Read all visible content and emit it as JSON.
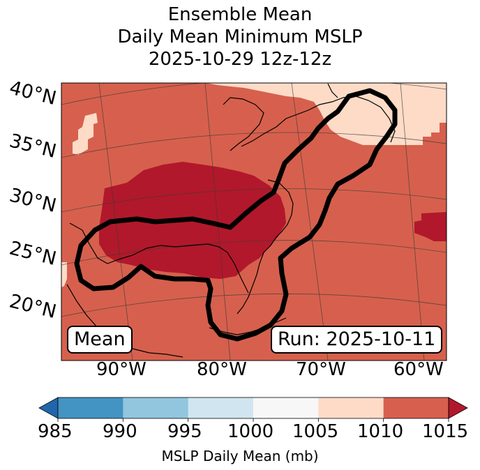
{
  "title": {
    "line1": "Ensemble Mean",
    "line2": "Daily Mean Minimum MSLP",
    "line3": "2025-10-29 12z-12z"
  },
  "badges": {
    "mean": "Mean",
    "run": "Run: 2025-10-11"
  },
  "lat_labels": [
    "40°N",
    "35°N",
    "30°N",
    "25°N",
    "20°N"
  ],
  "lon_labels": [
    "90°W",
    "80°W",
    "70°W",
    "60°W"
  ],
  "colorbar": {
    "label": "MSLP Daily Mean (mb)",
    "ticks": [
      "985",
      "990",
      "995",
      "1000",
      "1005",
      "1010",
      "1015"
    ],
    "colors": [
      "#2166ac",
      "#4393c3",
      "#92c5de",
      "#d1e5f0",
      "#f7f7f7",
      "#fddbc7",
      "#d6604d",
      "#b2182b"
    ]
  },
  "map_colors": {
    "bin_1005_1010": "#fddbc7",
    "bin_1010_1015": "#d6604d",
    "above_1015": "#b2182b"
  }
}
